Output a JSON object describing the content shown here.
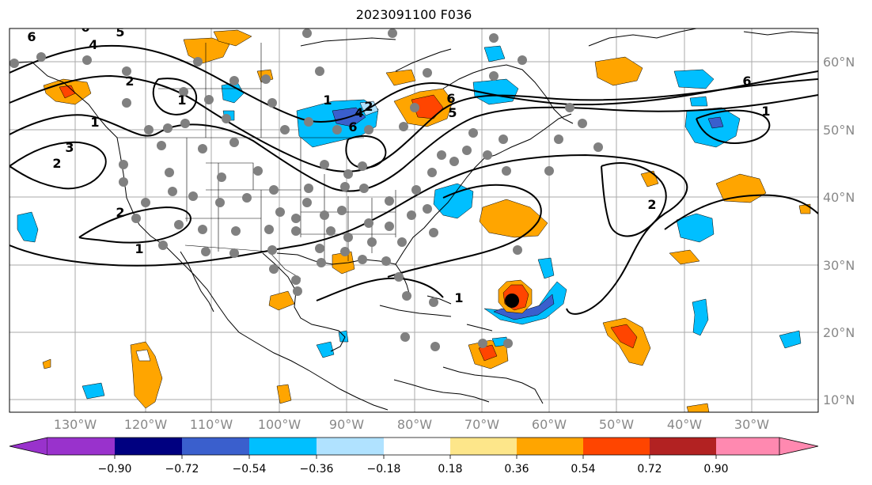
{
  "title": "2023091100 F036",
  "map": {
    "lon_labels": [
      "130°W",
      "120°W",
      "110°W",
      "100°W",
      "90°W",
      "80°W",
      "70°W",
      "60°W",
      "50°W",
      "40°W",
      "30°W"
    ],
    "lat_labels": [
      "60°N",
      "50°N",
      "40°N",
      "30°N",
      "20°N",
      "10°N"
    ],
    "contour_labels": [
      "6",
      "4",
      "5",
      "2",
      "1",
      "3",
      "2",
      "1",
      "2",
      "1",
      "6",
      "1",
      "2",
      "4",
      "6",
      "5",
      "6",
      "6",
      "1",
      "2",
      "1"
    ]
  },
  "colorbar": {
    "ticks": [
      "−0.90",
      "−0.72",
      "−0.54",
      "−0.36",
      "−0.18",
      "0.18",
      "0.36",
      "0.54",
      "0.72",
      "0.90"
    ],
    "colors": [
      "#9932cc",
      "#000080",
      "#3a5fcd",
      "#00bfff",
      "#b0e2ff",
      "#ffffff",
      "#fde68a",
      "#ffa500",
      "#ff4500",
      "#b22222",
      "#ff89b0"
    ],
    "under_color": "#9932cc",
    "over_color": "#ff89b0"
  },
  "features": {
    "storm_marker_color": "#000000",
    "station_dot_color": "#808080"
  }
}
